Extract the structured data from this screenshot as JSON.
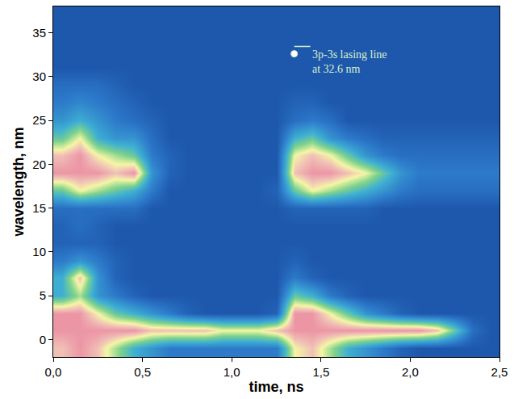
{
  "chart_data": {
    "type": "heatmap",
    "x_label": "time, ns",
    "y_label": "wavelength, nm",
    "x": [
      0.05,
      0.15,
      0.25,
      0.35,
      0.45,
      0.55,
      0.65,
      0.75,
      0.85,
      0.95,
      1.05,
      1.15,
      1.25,
      1.35,
      1.45,
      1.55,
      1.65,
      1.75,
      1.85,
      1.95,
      2.05,
      2.15,
      2.25,
      2.35,
      2.45
    ],
    "y": [
      -1,
      1,
      3,
      5,
      7,
      9,
      11,
      13,
      15,
      17,
      19,
      21,
      23,
      25,
      27,
      29,
      31,
      33,
      35,
      37
    ],
    "z": [
      [
        9,
        10,
        9,
        7,
        5,
        4,
        3,
        3,
        3,
        3,
        3,
        3,
        3,
        8,
        9,
        7,
        5,
        4,
        3,
        2,
        1.5,
        1.5,
        1.5,
        1.5,
        1.5
      ],
      [
        10,
        10,
        10,
        10,
        10,
        9,
        9,
        9,
        9,
        8,
        8,
        8,
        9,
        10,
        10,
        10,
        10,
        10,
        10,
        10,
        10,
        9,
        6,
        2.5,
        1.5
      ],
      [
        10,
        10,
        8,
        6,
        5,
        4,
        3,
        2,
        1.5,
        1.5,
        1.5,
        1.5,
        2,
        10,
        10,
        8,
        6,
        4,
        3,
        2,
        1.5,
        1.5,
        1.5,
        1.5,
        1.5
      ],
      [
        5,
        7,
        4,
        3,
        2,
        1.5,
        1.5,
        1.5,
        1.5,
        1.5,
        1.5,
        1.5,
        1.5,
        6,
        5,
        3,
        2,
        1.5,
        1.5,
        1.5,
        1.5,
        1.5,
        1.5,
        1.5,
        1.5
      ],
      [
        5,
        9,
        4,
        2,
        1.5,
        1.5,
        1.5,
        1.5,
        1.5,
        1.5,
        1.5,
        1.5,
        1.5,
        3,
        2,
        1.5,
        1.5,
        1.5,
        1.5,
        1.5,
        1.5,
        1.5,
        1.5,
        1.5,
        1.5
      ],
      [
        3,
        4,
        3,
        2,
        1.5,
        1.5,
        1.5,
        1.5,
        1.5,
        1.5,
        1.5,
        1.5,
        1.5,
        2,
        1.5,
        1.5,
        1.5,
        1.5,
        1.5,
        1.5,
        1.5,
        1.5,
        1.5,
        1.5,
        1.5
      ],
      [
        2,
        2,
        2,
        1.5,
        1.5,
        1.5,
        1.5,
        1.5,
        1.5,
        1.5,
        1.5,
        1.5,
        1.5,
        1.5,
        1.5,
        1.5,
        1.5,
        1.5,
        1.5,
        1.5,
        1.5,
        1.5,
        1.5,
        1.5,
        1.5
      ],
      [
        2,
        2.5,
        2,
        1.5,
        1.5,
        1.5,
        1.5,
        1.5,
        1.5,
        1.5,
        1.5,
        1.5,
        1.5,
        1.5,
        1.5,
        1.5,
        1.5,
        1.5,
        1.5,
        1.5,
        1.5,
        1.5,
        1.5,
        1.5,
        1.5
      ],
      [
        2.5,
        2.5,
        2.5,
        2.5,
        2.5,
        1.5,
        1.5,
        1.5,
        1.5,
        1.5,
        1.5,
        1.5,
        1.5,
        2,
        2,
        2,
        2,
        2,
        1.5,
        1.5,
        1.5,
        1.5,
        1.5,
        1.5,
        1.5
      ],
      [
        6,
        8,
        7,
        6,
        5,
        3,
        1.5,
        1.5,
        1.5,
        1.5,
        1.5,
        1.5,
        2,
        6,
        8,
        7,
        6,
        5,
        4,
        3,
        2.5,
        2.5,
        2.5,
        2.5,
        2.5
      ],
      [
        10,
        10,
        10,
        9,
        10,
        4,
        2,
        1.5,
        1.5,
        1.5,
        1.5,
        1.5,
        1.5,
        9,
        10,
        10,
        9,
        8,
        6,
        4,
        3,
        3,
        3,
        3,
        3
      ],
      [
        9,
        10,
        8,
        7,
        6,
        3,
        2,
        1.5,
        1.5,
        1.5,
        1.5,
        1.5,
        1.5,
        8,
        9,
        8,
        6,
        4,
        3,
        2.5,
        2.5,
        2.5,
        2.5,
        2.5,
        2.5
      ],
      [
        6,
        8,
        5,
        4,
        4,
        2.5,
        1.5,
        1.5,
        1.5,
        1.5,
        1.5,
        1.5,
        1.5,
        5,
        6,
        4,
        3,
        2.5,
        2,
        2,
        2,
        2,
        2,
        2,
        2
      ],
      [
        4,
        5,
        4,
        3,
        2.5,
        2,
        1.5,
        1.5,
        1.5,
        1.5,
        1.5,
        1.5,
        1.5,
        2.5,
        3,
        2.5,
        1.5,
        1.5,
        1.5,
        1.5,
        1.5,
        1.5,
        1.5,
        1.5,
        1.5
      ],
      [
        3,
        3.5,
        3,
        2.5,
        2,
        1.5,
        1.5,
        1.5,
        1.5,
        1.5,
        1.5,
        1.5,
        1.5,
        2,
        2,
        1.5,
        1.5,
        1.5,
        1.5,
        1.5,
        1.5,
        1.5,
        1.5,
        1.5,
        1.5
      ],
      [
        2.5,
        2.5,
        2.5,
        2,
        1.5,
        1.5,
        1.5,
        1.5,
        1.5,
        1.5,
        1.5,
        1.5,
        1.5,
        1.5,
        1.5,
        1.5,
        1.5,
        1.5,
        1.5,
        1.5,
        1.5,
        1.5,
        1.5,
        1.5,
        1.5
      ],
      [
        1.5,
        1.5,
        1.5,
        1.5,
        1.5,
        1.5,
        1.5,
        1.5,
        1.5,
        1.5,
        1.5,
        1.5,
        1.5,
        1.5,
        1.5,
        1.5,
        1.5,
        1.5,
        1.5,
        1.5,
        1.5,
        1.5,
        1.5,
        1.5,
        1.5
      ],
      [
        1.5,
        1.5,
        1.5,
        1.5,
        1.5,
        1.5,
        1.5,
        1.5,
        1.5,
        1.5,
        1.5,
        1.5,
        1.5,
        1.5,
        1.5,
        1.5,
        1.5,
        1.5,
        1.5,
        1.5,
        1.5,
        1.5,
        1.5,
        1.5,
        1.5
      ],
      [
        1.5,
        1.5,
        1.5,
        1.5,
        1.5,
        1.5,
        1.5,
        1.5,
        1.5,
        1.5,
        1.5,
        1.5,
        1.5,
        1.5,
        1.5,
        1.5,
        1.5,
        1.5,
        1.5,
        1.5,
        1.5,
        1.5,
        1.5,
        1.5,
        1.5
      ],
      [
        1.5,
        1.5,
        1.5,
        1.5,
        1.5,
        1.5,
        1.5,
        1.5,
        1.5,
        1.5,
        1.5,
        1.5,
        1.5,
        1.5,
        1.5,
        1.5,
        1.5,
        1.5,
        1.5,
        1.5,
        1.5,
        1.5,
        1.5,
        1.5,
        1.5
      ]
    ],
    "zlim": [
      0,
      10
    ],
    "xlim": [
      0,
      2.5
    ],
    "ylim": [
      -2,
      38
    ],
    "xticks": [
      {
        "value": 0,
        "label": "0,0"
      },
      {
        "value": 0.5,
        "label": "0,5"
      },
      {
        "value": 1,
        "label": "1,0"
      },
      {
        "value": 1.5,
        "label": "1,5"
      },
      {
        "value": 2,
        "label": "2,0"
      },
      {
        "value": 2.5,
        "label": "2,5"
      }
    ],
    "yticks": [
      0,
      5,
      10,
      15,
      20,
      25,
      30,
      35
    ],
    "grid": false,
    "annotations": [
      {
        "text": [
          "3p-3s lasing line",
          "at 32.6 nm"
        ],
        "x": 1.35,
        "y": 32.6
      }
    ]
  }
}
